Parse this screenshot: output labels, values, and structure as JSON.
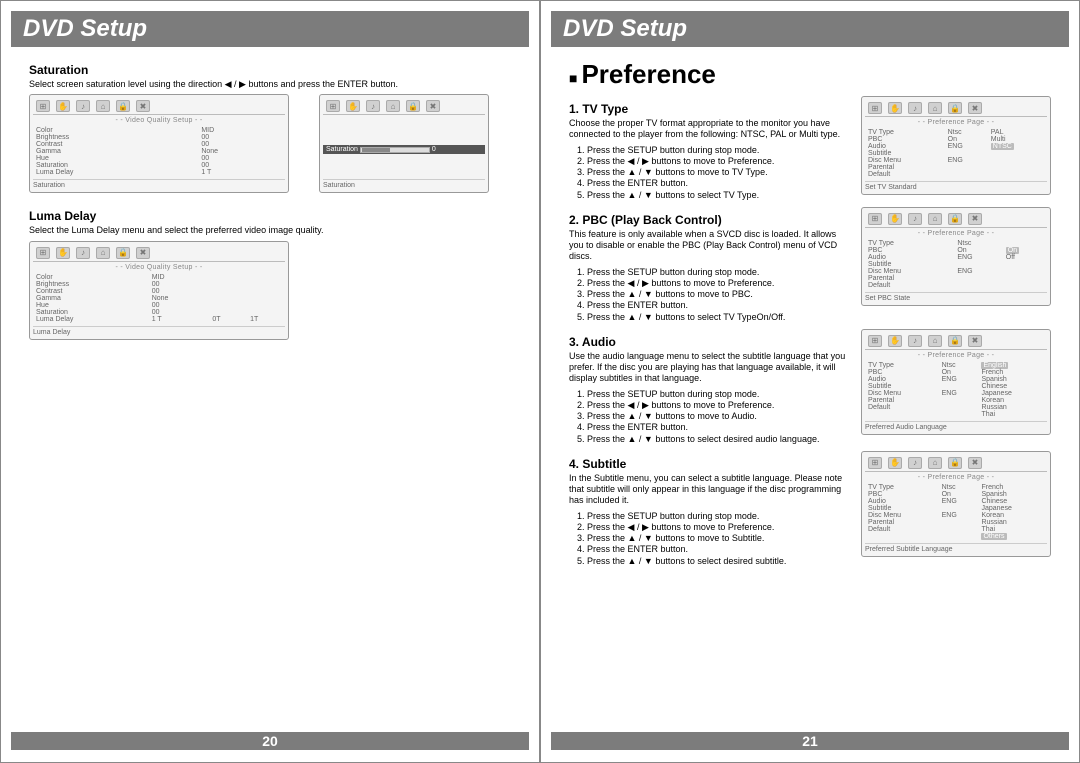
{
  "header_title": "DVD Setup",
  "left_page": {
    "page_number": "20",
    "sections": {
      "saturation": {
        "title": "Saturation",
        "text": "Select screen saturation level using the direction ◀ / ▶ buttons and press the ENTER button.",
        "osd1": {
          "subheader": "- - Video Quality Setup - -",
          "rows": [
            [
              "Color",
              "MID"
            ],
            [
              "Brightness",
              "00"
            ],
            [
              "Contrast",
              "00"
            ],
            [
              "Gamma",
              "None"
            ],
            [
              "Hue",
              "00"
            ],
            [
              "Saturation",
              "00"
            ],
            [
              "Luma Delay",
              "1 T"
            ]
          ],
          "footer": "Saturation"
        },
        "osd2": {
          "slider_label": "Saturation",
          "slider_value": "0",
          "footer": "Saturation"
        }
      },
      "luma": {
        "title": "Luma Delay",
        "text": "Select the Luma Delay menu and select the preferred video image quality.",
        "osd": {
          "subheader": "- - Video Quality Setup - -",
          "rows": [
            [
              "Color",
              "MID",
              ""
            ],
            [
              "Brightness",
              "00",
              ""
            ],
            [
              "Contrast",
              "00",
              ""
            ],
            [
              "Gamma",
              "None",
              ""
            ],
            [
              "Hue",
              "00",
              ""
            ],
            [
              "Saturation",
              "00",
              ""
            ],
            [
              "Luma Delay",
              "1 T",
              "0T"
            ]
          ],
          "extra_col": "1T",
          "footer": "Luma Delay"
        }
      }
    }
  },
  "right_page": {
    "page_number": "21",
    "big_title": "Preference",
    "sections": {
      "tvtype": {
        "title": "1. TV Type",
        "text": "Choose the proper TV format appropriate to the monitor you have connected to the player from the following: NTSC, PAL or Multi type.",
        "steps": "1. Press the SETUP button during stop mode.\n2. Press the ◀ / ▶ buttons to move to Preference.\n3. Press the ▲ / ▼ buttons to move to TV Type.\n4. Press the ENTER button.\n5. Press the ▲ / ▼ buttons to select TV Type.",
        "osd": {
          "subheader": "- - Preference Page - -",
          "rows": [
            [
              "TV Type",
              "Ntsc",
              "PAL"
            ],
            [
              "PBC",
              "On",
              "Multi"
            ],
            [
              "Audio",
              "ENG",
              "NTSC"
            ],
            [
              "Subtitle",
              "",
              ""
            ],
            [
              "Disc Menu",
              "ENG",
              ""
            ],
            [
              "Parental",
              "",
              ""
            ],
            [
              "Default",
              "",
              ""
            ]
          ],
          "highlight_row": 2,
          "highlight_col": 2,
          "footer": "Set TV Standard"
        }
      },
      "pbc": {
        "title": "2. PBC (Play Back Control)",
        "text": "This feature is only available when a SVCD disc is loaded. It allows you to disable or enable the PBC (Play Back Control) menu of VCD discs.",
        "steps": "1. Press the SETUP button during stop mode.\n2. Press the ◀ / ▶ buttons to move to Preference.\n3. Press the ▲ / ▼ buttons to move to PBC.\n4. Press the ENTER button.\n5. Press the ▲ / ▼ buttons to select TV TypeOn/Off.",
        "osd": {
          "subheader": "- - Preference Page - -",
          "rows": [
            [
              "TV Type",
              "Ntsc",
              ""
            ],
            [
              "PBC",
              "On",
              "On"
            ],
            [
              "Audio",
              "ENG",
              "Off"
            ],
            [
              "Subtitle",
              "",
              ""
            ],
            [
              "Disc Menu",
              "ENG",
              ""
            ],
            [
              "Parental",
              "",
              ""
            ],
            [
              "Default",
              "",
              ""
            ]
          ],
          "highlight_row": 1,
          "highlight_col": 2,
          "footer": "Set PBC State"
        }
      },
      "audio": {
        "title": "3. Audio",
        "text": "Use the audio language menu to select the subtitle language that you prefer. If the disc you are playing has that language available, it will display subtitles in that language.",
        "steps": "1. Press the SETUP button during stop mode.\n2. Press the ◀ / ▶ buttons to move to Preference.\n3. Press the ▲ / ▼ buttons to move to Audio.\n4. Press the ENTER button.\n5. Press the ▲ / ▼ buttons to select desired audio language.",
        "osd": {
          "subheader": "- - Preference Page - -",
          "rows": [
            [
              "TV Type",
              "Ntsc",
              "English"
            ],
            [
              "PBC",
              "On",
              "French"
            ],
            [
              "Audio",
              "ENG",
              "Spanish"
            ],
            [
              "Subtitle",
              "",
              "Chinese"
            ],
            [
              "Disc Menu",
              "ENG",
              "Japanese"
            ],
            [
              "Parental",
              "",
              "Korean"
            ],
            [
              "Default",
              "",
              "Russian"
            ],
            [
              "",
              "",
              "Thai"
            ]
          ],
          "highlight_row": 0,
          "highlight_col": 2,
          "footer": "Preferred Audio Language"
        }
      },
      "subtitle": {
        "title": "4. Subtitle",
        "text": "In the Subtitle menu, you can select a subtitle language. Please note that subtitle will only appear in this language if the disc programming has included it.",
        "steps": "1. Press the SETUP button during stop mode.\n2. Press the ◀ / ▶ buttons to move to Preference.\n3. Press the ▲ / ▼ buttons to move to Subtitle.\n4. Press the ENTER button.\n5. Press the ▲ / ▼ buttons to select desired subtitle.",
        "osd": {
          "subheader": "- - Preference Page - -",
          "rows": [
            [
              "TV Type",
              "Ntsc",
              "French"
            ],
            [
              "PBC",
              "On",
              "Spanish"
            ],
            [
              "Audio",
              "ENG",
              "Chinese"
            ],
            [
              "Subtitle",
              "",
              "Japanese"
            ],
            [
              "Disc Menu",
              "ENG",
              "Korean"
            ],
            [
              "Parental",
              "",
              "Russian"
            ],
            [
              "Default",
              "",
              "Thai"
            ],
            [
              "",
              "",
              "Others"
            ]
          ],
          "highlight_row": 7,
          "highlight_col": 2,
          "footer": "Preferred Subtitle Language"
        }
      }
    }
  },
  "icons": [
    "⊞",
    "✋",
    "♪",
    "⌂",
    "🔒",
    "✖"
  ]
}
